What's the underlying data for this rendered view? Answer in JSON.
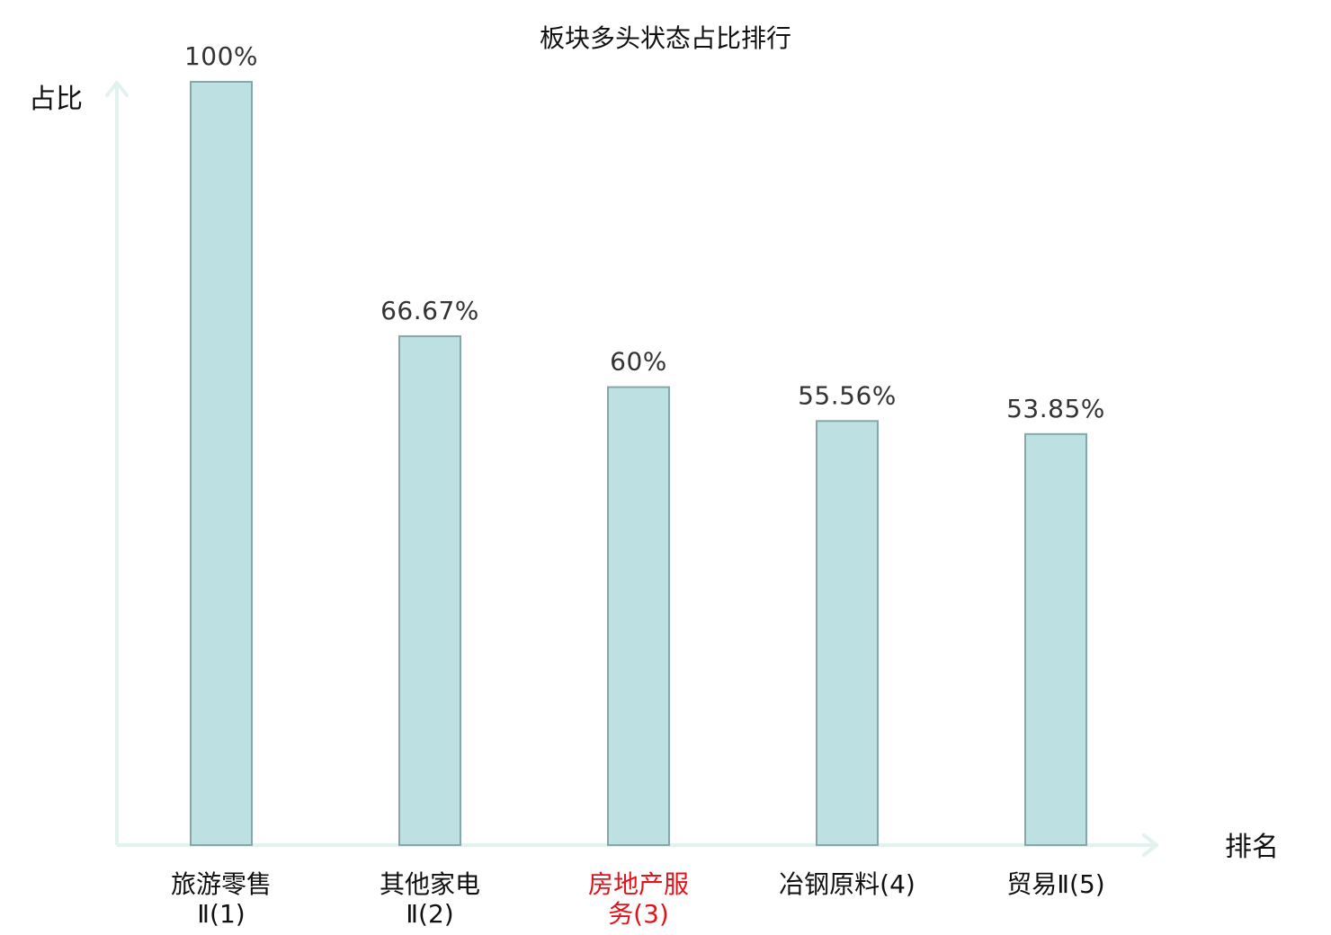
{
  "chart_data": {
    "type": "bar",
    "title": "板块多头状态占比排行",
    "ylabel": "占比",
    "xlabel": "排名",
    "categories": [
      [
        "旅游零售",
        "Ⅱ(1)"
      ],
      [
        "其他家电",
        "Ⅱ(2)"
      ],
      [
        "房地产服",
        "务(3)"
      ],
      [
        "冶钢原料(4)"
      ],
      [
        "贸易Ⅱ(5)"
      ]
    ],
    "values": [
      100,
      66.67,
      60,
      55.56,
      53.85
    ],
    "value_labels": [
      "100%",
      "66.67%",
      "60%",
      "55.56%",
      "53.85%"
    ],
    "highlight_index": 2,
    "ylim": [
      0,
      100
    ],
    "grid": false,
    "colors": {
      "bar_fill": "#bde0e2",
      "bar_stroke": "#86a6a8",
      "axis": "#e2f2ef",
      "label": "#111111",
      "highlight": "#e0141b"
    }
  }
}
